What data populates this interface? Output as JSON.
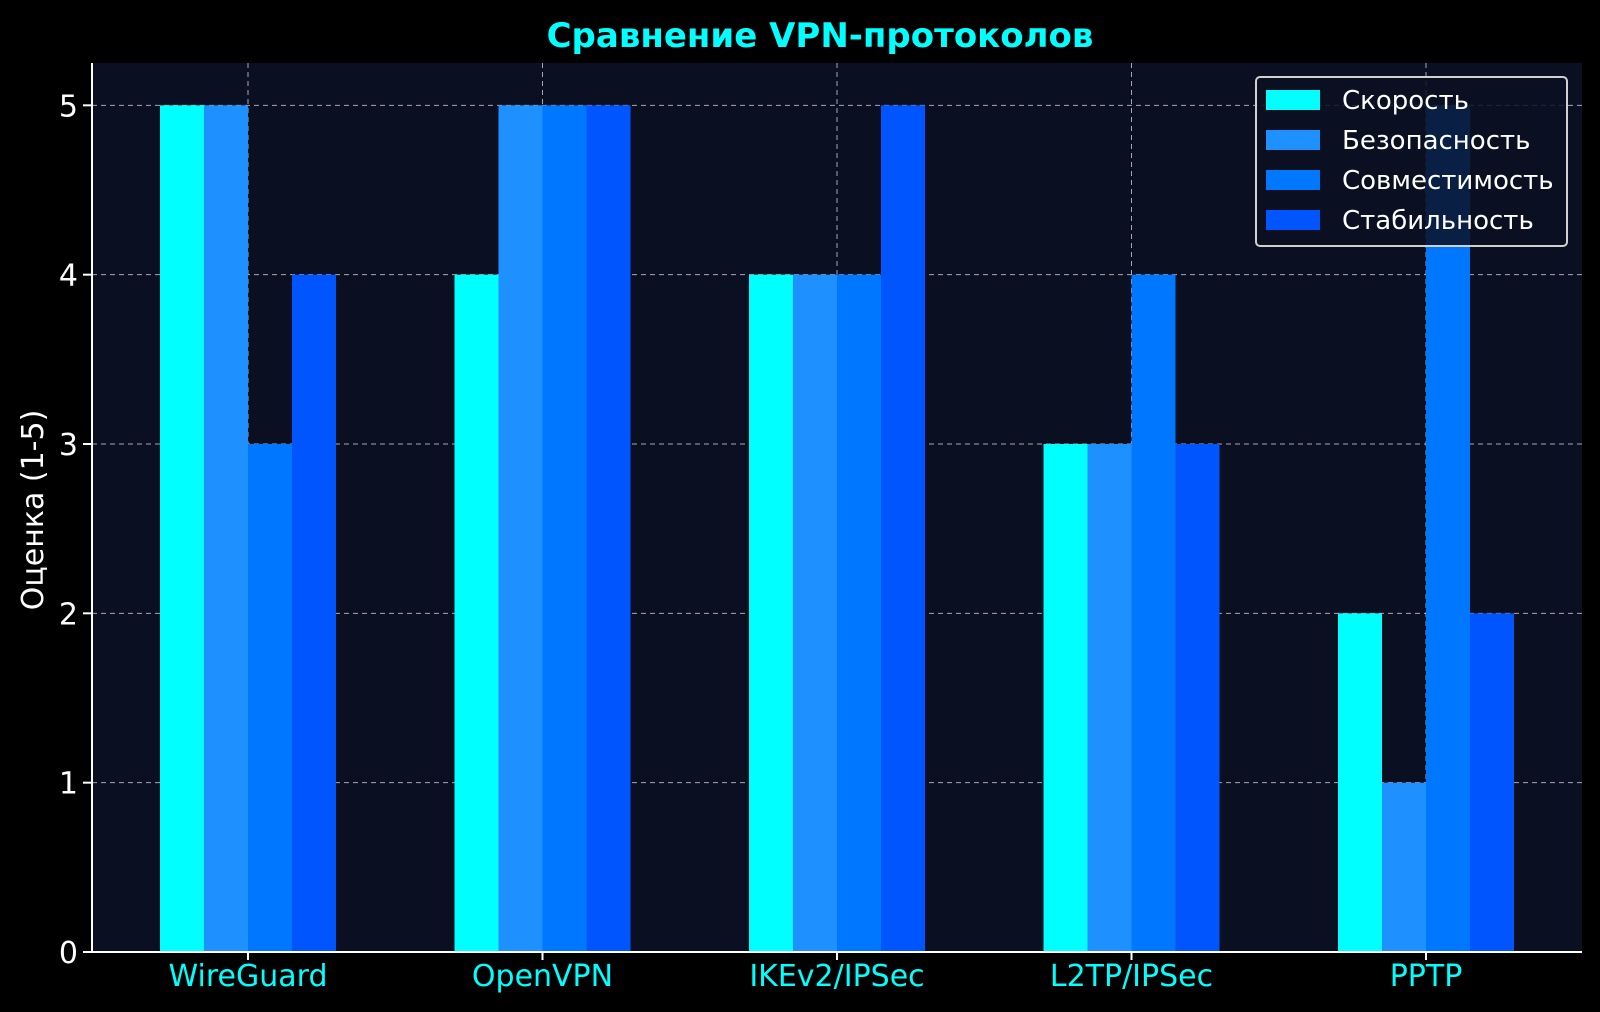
{
  "chart_data": {
    "type": "bar",
    "title": "Сравнение VPN-протоколов",
    "xlabel": "",
    "ylabel": "Оценка (1-5)",
    "ylim": [
      0,
      5.25
    ],
    "yticks": [
      "0",
      "1",
      "2",
      "3",
      "4",
      "5"
    ],
    "grid": true,
    "legend_position": "top-right",
    "categories": [
      "WireGuard",
      "OpenVPN",
      "IKEv2/IPSec",
      "L2TP/IPSec",
      "PPTP"
    ],
    "series": [
      {
        "name": "Скорость",
        "color": "#00ffff",
        "values": [
          5,
          4,
          4,
          3,
          2
        ]
      },
      {
        "name": "Безопасность",
        "color": "#1e90ff",
        "values": [
          5,
          5,
          4,
          3,
          1
        ]
      },
      {
        "name": "Совместимость",
        "color": "#0077ff",
        "values": [
          3,
          5,
          4,
          4,
          5
        ]
      },
      {
        "name": "Стабильность",
        "color": "#0055ff",
        "values": [
          4,
          5,
          5,
          3,
          2
        ]
      }
    ]
  },
  "colors": {
    "background": "#000000",
    "plot_background": "#0b0f22",
    "title": "#00ffff",
    "tick_x": "#00ffff",
    "text": "#ffffff"
  }
}
